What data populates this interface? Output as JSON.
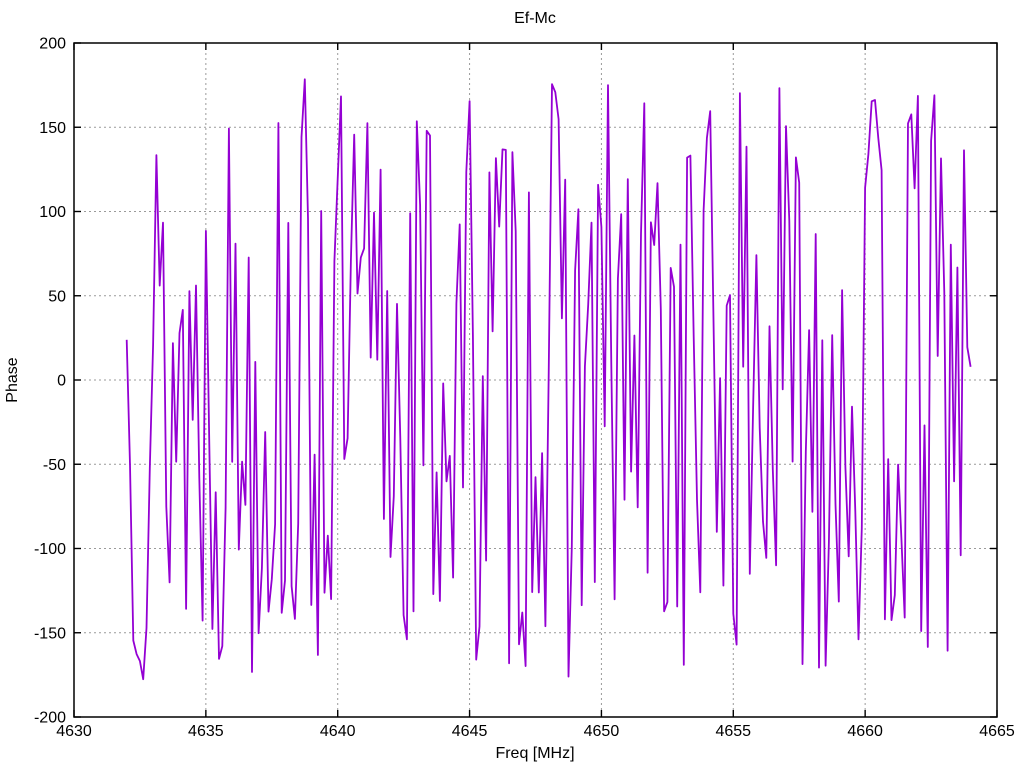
{
  "chart_data": {
    "type": "line",
    "title": "Ef-Mc",
    "xlabel": "Freq [MHz]",
    "ylabel": "Phase",
    "xlim": [
      4630,
      4665
    ],
    "ylim": [
      -200,
      200
    ],
    "x_ticks": [
      4630,
      4635,
      4640,
      4645,
      4650,
      4655,
      4660,
      4665
    ],
    "y_ticks": [
      -200,
      -150,
      -100,
      -50,
      0,
      50,
      100,
      150,
      200
    ],
    "grid": true,
    "grid_color": "#9a9a9a",
    "axis_color": "#000000",
    "background": "#ffffff",
    "legend": "none",
    "series": [
      {
        "name": "Ef-Mc",
        "color": "#9400d3",
        "style": "lines",
        "x_start": 4632.0,
        "x_end": 4664.0,
        "x_step_mhz": 0.125,
        "n_points": 257,
        "y_model": "uniform-random-phase",
        "y_range": [
          -180,
          180
        ],
        "seed": 13
      }
    ]
  }
}
